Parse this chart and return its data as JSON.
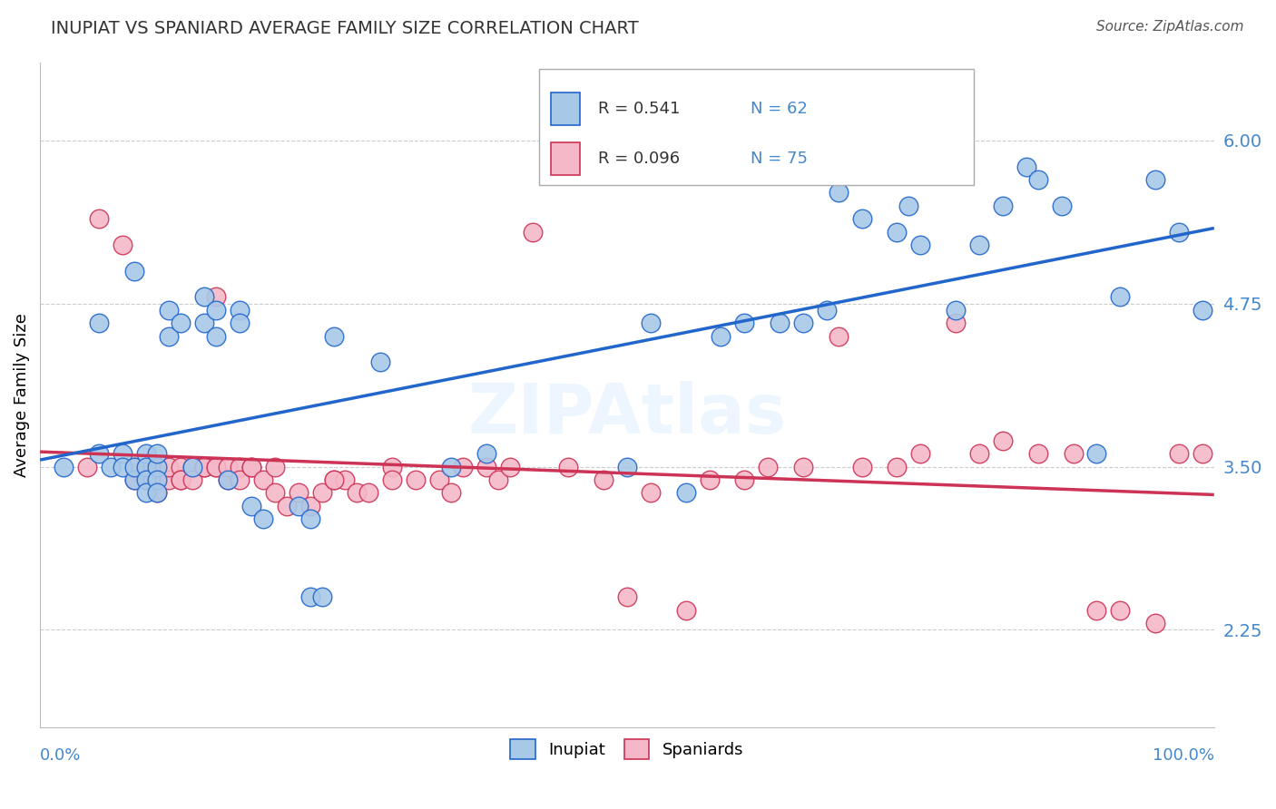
{
  "title": "INUPIAT VS SPANIARD AVERAGE FAMILY SIZE CORRELATION CHART",
  "source": "Source: ZipAtlas.com",
  "ylabel": "Average Family Size",
  "yticks": [
    2.25,
    3.5,
    4.75,
    6.0
  ],
  "xlim": [
    0.0,
    1.0
  ],
  "ylim": [
    1.5,
    6.6
  ],
  "inupiat_R": 0.541,
  "inupiat_N": 62,
  "spaniard_R": 0.096,
  "spaniard_N": 75,
  "inupiat_color": "#A8C8E8",
  "spaniard_color": "#F5B8C8",
  "inupiat_line_color": "#2266CC",
  "spaniard_line_color": "#CC3355",
  "ytick_color": "#4488CC",
  "xtick_color": "#4488CC",
  "background_color": "#FFFFFF",
  "grid_color": "#CCCCCC",
  "inupiat_x": [
    0.02,
    0.05,
    0.06,
    0.07,
    0.07,
    0.08,
    0.08,
    0.08,
    0.09,
    0.09,
    0.09,
    0.09,
    0.1,
    0.1,
    0.1,
    0.1,
    0.11,
    0.11,
    0.12,
    0.13,
    0.14,
    0.14,
    0.15,
    0.15,
    0.16,
    0.17,
    0.18,
    0.19,
    0.22,
    0.23,
    0.23,
    0.24,
    0.25,
    0.29,
    0.35,
    0.38,
    0.5,
    0.52,
    0.55,
    0.58,
    0.6,
    0.63,
    0.65,
    0.67,
    0.68,
    0.7,
    0.73,
    0.74,
    0.75,
    0.78,
    0.8,
    0.82,
    0.84,
    0.85,
    0.87,
    0.9,
    0.92,
    0.95,
    0.97,
    0.99,
    0.05,
    0.17
  ],
  "inupiat_y": [
    3.5,
    3.6,
    3.5,
    3.6,
    3.5,
    3.4,
    3.5,
    5.0,
    3.6,
    3.5,
    3.4,
    3.3,
    3.5,
    3.6,
    3.4,
    3.3,
    4.7,
    4.5,
    4.6,
    3.5,
    4.8,
    4.6,
    4.7,
    4.5,
    3.4,
    4.7,
    3.2,
    3.1,
    3.2,
    3.1,
    2.5,
    2.5,
    4.5,
    4.3,
    3.5,
    3.6,
    3.5,
    4.6,
    3.3,
    4.5,
    4.6,
    4.6,
    4.6,
    4.7,
    5.6,
    5.4,
    5.3,
    5.5,
    5.2,
    4.7,
    5.2,
    5.5,
    5.8,
    5.7,
    5.5,
    3.6,
    4.8,
    5.7,
    5.3,
    4.7,
    4.6,
    4.6
  ],
  "spaniard_x": [
    0.04,
    0.05,
    0.07,
    0.08,
    0.08,
    0.09,
    0.09,
    0.09,
    0.1,
    0.1,
    0.1,
    0.1,
    0.11,
    0.11,
    0.12,
    0.12,
    0.12,
    0.13,
    0.13,
    0.14,
    0.14,
    0.15,
    0.15,
    0.16,
    0.16,
    0.17,
    0.17,
    0.18,
    0.18,
    0.19,
    0.2,
    0.21,
    0.22,
    0.23,
    0.24,
    0.25,
    0.26,
    0.27,
    0.28,
    0.3,
    0.32,
    0.34,
    0.36,
    0.38,
    0.39,
    0.4,
    0.45,
    0.48,
    0.5,
    0.52,
    0.55,
    0.57,
    0.6,
    0.62,
    0.65,
    0.68,
    0.7,
    0.73,
    0.75,
    0.78,
    0.8,
    0.82,
    0.85,
    0.88,
    0.9,
    0.92,
    0.95,
    0.97,
    0.99,
    0.42,
    0.15,
    0.2,
    0.25,
    0.3,
    0.35
  ],
  "spaniard_y": [
    3.5,
    5.4,
    5.2,
    3.4,
    3.5,
    3.5,
    3.5,
    3.4,
    3.5,
    3.4,
    3.4,
    3.3,
    3.4,
    3.5,
    3.5,
    3.4,
    3.4,
    3.5,
    3.4,
    3.5,
    3.5,
    3.5,
    3.5,
    3.4,
    3.5,
    3.5,
    3.4,
    3.5,
    3.5,
    3.4,
    3.3,
    3.2,
    3.3,
    3.2,
    3.3,
    3.4,
    3.4,
    3.3,
    3.3,
    3.5,
    3.4,
    3.4,
    3.5,
    3.5,
    3.4,
    3.5,
    3.5,
    3.4,
    2.5,
    3.3,
    2.4,
    3.4,
    3.4,
    3.5,
    3.5,
    4.5,
    3.5,
    3.5,
    3.6,
    4.6,
    3.6,
    3.7,
    3.6,
    3.6,
    2.4,
    2.4,
    2.3,
    3.6,
    3.6,
    5.3,
    4.8,
    3.5,
    3.4,
    3.4,
    3.3
  ]
}
